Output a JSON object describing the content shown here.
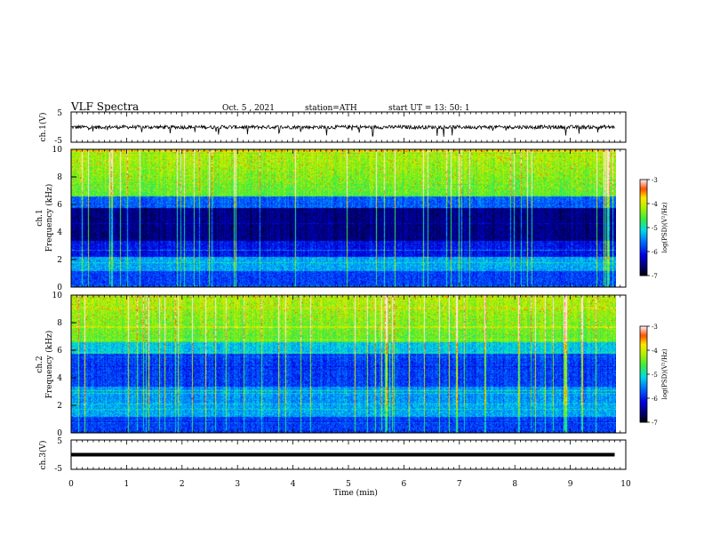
{
  "header": {
    "title": "VLF  Spectra",
    "date": "Oct. 5  , 2021",
    "station": "station=ATH",
    "start": "start  UT  =    13: 50: 1"
  },
  "chart_data": [
    {
      "type": "line",
      "panel": "ch1-waveform",
      "ylabel": "ch.1(V)",
      "ylim": [
        -5,
        5
      ],
      "yticks": [
        5,
        -5
      ],
      "xlim": [
        0,
        10
      ],
      "series_note_values": {
        "baseline": 0,
        "typical_noise": 0.6,
        "end_time": 9.8
      }
    },
    {
      "type": "heatmap",
      "panel": "ch1-spectrogram",
      "ylabel_top": "ch.1",
      "ylabel": "Frequency  (kHz)",
      "ylim": [
        0,
        10
      ],
      "yticks": [
        10,
        8,
        6,
        4,
        2,
        0
      ],
      "xlim": [
        0,
        9.8
      ],
      "colorbar": {
        "label": "log(PSD)(V²/Hz)",
        "range": [
          -7,
          -3
        ],
        "ticks": [
          "-3",
          "-4",
          "-5",
          "-6",
          "-7"
        ]
      }
    },
    {
      "type": "heatmap",
      "panel": "ch2-spectrogram",
      "ylabel_top": "ch.2",
      "ylabel": "Frequency  (kHz)",
      "ylim": [
        0,
        10
      ],
      "yticks": [
        10,
        8,
        6,
        4,
        2,
        0
      ],
      "xlim": [
        0,
        9.8
      ],
      "colorbar": {
        "label": "log(PSD)(V²/Hz)",
        "range": [
          -7,
          -3
        ],
        "ticks": [
          "-3",
          "-4",
          "-5",
          "-6",
          "-7"
        ]
      }
    },
    {
      "type": "line",
      "panel": "ch3-waveform",
      "ylabel": "ch.3(V)",
      "ylim": [
        -5,
        5
      ],
      "yticks": [
        5,
        -5
      ],
      "xlim": [
        0,
        10
      ],
      "series_note_values": {
        "baseline": 0,
        "typical_noise": 0,
        "end_time": 9.8
      }
    }
  ],
  "xaxis": {
    "label": "Time  (min)",
    "ticks": [
      "0",
      "1",
      "2",
      "3",
      "4",
      "5",
      "6",
      "7",
      "8",
      "9",
      "10"
    ]
  }
}
